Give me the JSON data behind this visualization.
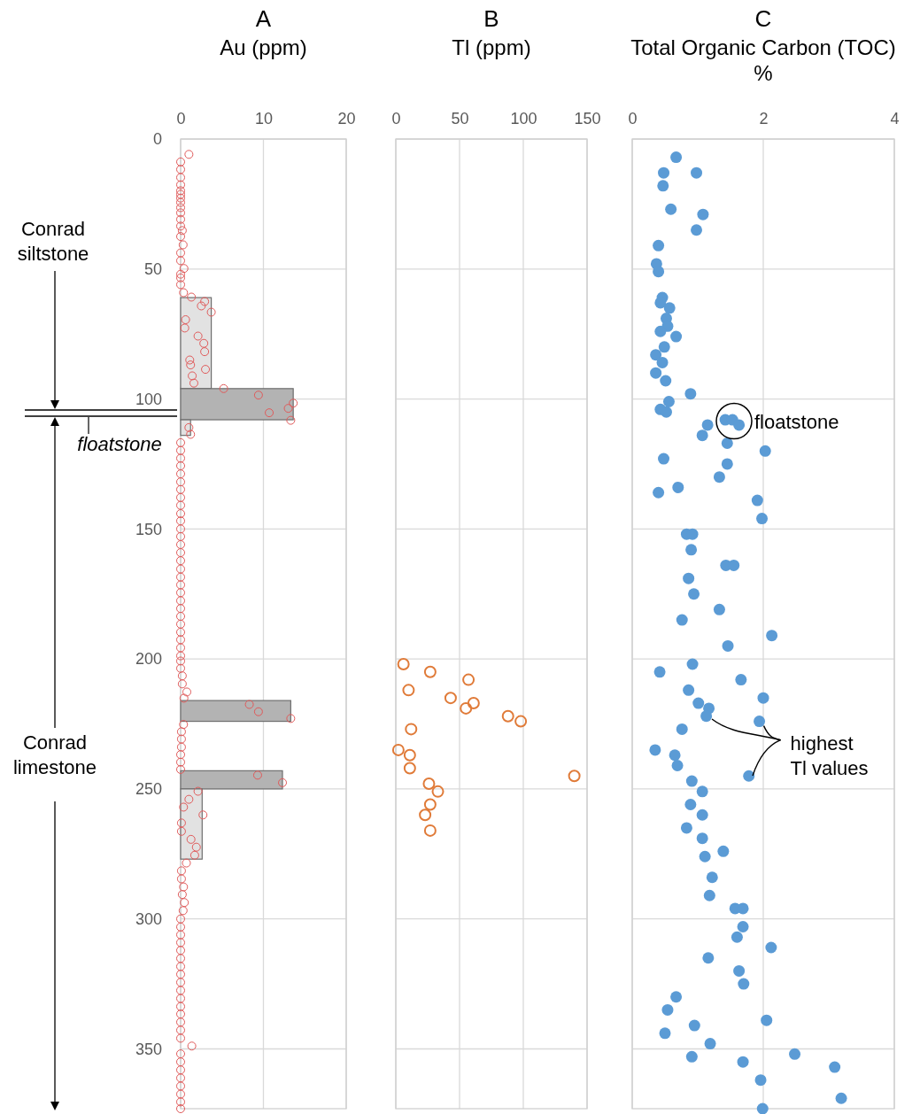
{
  "chart_data": [
    {
      "type": "histogram",
      "orientation": "horizontal",
      "title": "A",
      "xlabel": "Au (ppm)",
      "xlim": [
        0,
        20
      ],
      "xticks": [
        0,
        10,
        20
      ],
      "ylim": [
        373,
        0
      ],
      "yticks": [
        0,
        50,
        100,
        150,
        200,
        250,
        300,
        350
      ],
      "grid": true,
      "marker": "circle",
      "annotations": [
        "Conrad\nsiltstone",
        "floatstone",
        "Conrad\nlimestone"
      ],
      "series": [
        {
          "bins": [
            61,
            96,
            108,
            114,
            216,
            224,
            243,
            250,
            277
          ],
          "values": [
            3.7,
            13.6,
            1.2,
            0,
            13.3,
            0,
            12.3,
            2.6
          ],
          "colors": [
            "#e2e2e2",
            "#b3b3b3",
            "#e2e2e2",
            "#e2e2e2",
            "#b3b3b3",
            "#e2e2e2",
            "#b3b3b3",
            "#e2e2e2"
          ]
        },
        {
          "type": "scatter",
          "color": "#e05a5a",
          "values": [
            1.0,
            0,
            0,
            0,
            0,
            0,
            0,
            0,
            0,
            0,
            0,
            0,
            0,
            0.2,
            0,
            0.3,
            0,
            0,
            0.4,
            0,
            0,
            0,
            0.35,
            1.3,
            2.9,
            2.5,
            3.7,
            0.6,
            0.5,
            2.1,
            2.8,
            2.9,
            1.1,
            1.2,
            3.0,
            1.4,
            1.6,
            5.2,
            9.4,
            13.6,
            13.0,
            10.7,
            13.3,
            1.0,
            1.2,
            0,
            0,
            0,
            0,
            0,
            0,
            0,
            0,
            0,
            0,
            0,
            0,
            0,
            0,
            0,
            0,
            0,
            0,
            0,
            0,
            0,
            0,
            0,
            0,
            0,
            0,
            0,
            0,
            0,
            0,
            0.2,
            0.2,
            0.75,
            0.4,
            8.3,
            9.4,
            13.3,
            0.35,
            0.1,
            0.1,
            0.1,
            0,
            0,
            0,
            9.3,
            12.3,
            2.1,
            1.0,
            0.35,
            2.7,
            0.1,
            0.1,
            1.25,
            1.9,
            1.7,
            0.7,
            0.1,
            0.1,
            0.35,
            0.2,
            0.45,
            0.3,
            0,
            0,
            0,
            0,
            0,
            0,
            0,
            0,
            0,
            0,
            0,
            0,
            0,
            0,
            0,
            0,
            1.35,
            0,
            0,
            0,
            0,
            0,
            0,
            0,
            0
          ],
          "x": [
            5.9,
            8.8,
            11.7,
            14.8,
            17.6,
            19.9,
            21.3,
            22.7,
            24.4,
            26.4,
            28.4,
            30.9,
            33.5,
            35.2,
            37.5,
            40.7,
            43.8,
            46.8,
            49.8,
            52.0,
            53.4,
            56.0,
            59.1,
            60.8,
            62.5,
            64.2,
            66.6,
            69.5,
            72.7,
            75.8,
            78.6,
            81.8,
            85.0,
            86.9,
            88.6,
            91.1,
            93.9,
            96.0,
            98.5,
            101.6,
            103.6,
            105.3,
            108.2,
            111.0,
            113.6,
            116.8,
            119.8,
            122.8,
            125.7,
            128.8,
            131.9,
            134.8,
            137.9,
            140.9,
            144.1,
            146.9,
            150,
            152.9,
            156,
            159.1,
            162.2,
            165.4,
            168.5,
            171.5,
            174.5,
            177.6,
            180.6,
            183.6,
            186.6,
            189.7,
            192.6,
            195.7,
            198.8,
            200.8,
            203.6,
            206.5,
            209.6,
            212.7,
            215.1,
            217.5,
            220.3,
            222.9,
            225.2,
            228,
            230.8,
            233.9,
            236.8,
            239.7,
            242.5,
            244.7,
            247.6,
            250.9,
            254,
            257,
            260,
            263.1,
            266.3,
            269.4,
            272.4,
            275.5,
            278.5,
            281.5,
            284.6,
            287.7,
            290.6,
            293.7,
            296.8,
            300,
            303.1,
            306.1,
            309.1,
            312.1,
            315.2,
            318.3,
            321.3,
            324.4,
            327.5,
            330.6,
            333.7,
            336.6,
            339.7,
            342.8,
            345.9,
            348.9,
            351.9,
            355,
            358.1,
            361.2,
            364.3,
            367.4,
            370.4,
            373
          ]
        }
      ]
    },
    {
      "type": "scatter",
      "title": "B",
      "xlabel": "Tl (ppm)",
      "xlim": [
        0,
        150
      ],
      "xticks": [
        0,
        50,
        100,
        150
      ],
      "ylim": [
        373,
        0
      ],
      "yticks": [
        0,
        50,
        100,
        150,
        200,
        250,
        300,
        350
      ],
      "grid": true,
      "marker": "circle",
      "tick_labels": "x",
      "series": [
        {
          "color": "#e07b39",
          "x": [
            6,
            27,
            57,
            10,
            43,
            61,
            55,
            88,
            98,
            12,
            2,
            11,
            11,
            140,
            26,
            33,
            27,
            23,
            27
          ],
          "values": [
            202,
            205,
            208,
            212,
            215,
            217,
            219,
            222,
            224,
            227,
            235,
            237,
            242,
            245,
            248,
            251,
            256,
            260,
            266
          ]
        }
      ]
    },
    {
      "type": "scatter",
      "title": "C",
      "xlabel": "Total Organic Carbon (TOC)\n%",
      "xlim": [
        0,
        4
      ],
      "xticks": [
        0,
        2,
        4
      ],
      "ylim": [
        373,
        0
      ],
      "yticks": [
        0,
        50,
        100,
        150,
        200,
        250,
        300,
        350
      ],
      "grid": true,
      "marker": "circle",
      "tick_labels": "x",
      "annotations": [
        {
          "text": "floatstone",
          "x": 1.5,
          "y": 108.5
        },
        {
          "text": "highest\nTl values",
          "x": 1.94,
          "y": 224
        }
      ],
      "series": [
        {
          "color": "#5b9bd5",
          "x": [
            0.67,
            0.48,
            0.98,
            0.47,
            0.59,
            1.08,
            0.98,
            0.4,
            0.37,
            0.4,
            0.46,
            0.43,
            0.57,
            0.52,
            0.54,
            0.43,
            0.67,
            0.49,
            0.36,
            0.46,
            0.36,
            0.51,
            0.89,
            0.56,
            0.43,
            0.52,
            1.15,
            1.42,
            1.53,
            1.63,
            1.07,
            1.45,
            2.03,
            0.48,
            1.45,
            1.33,
            0.7,
            0.4,
            1.91,
            1.98,
            0.83,
            0.92,
            0.9,
            1.43,
            1.55,
            0.86,
            0.94,
            1.33,
            0.76,
            2.13,
            1.46,
            0.92,
            0.42,
            1.66,
            0.86,
            2.0,
            1.01,
            1.17,
            1.13,
            1.94,
            0.76,
            0.35,
            0.65,
            0.69,
            1.78,
            0.91,
            1.07,
            0.89,
            1.07,
            0.83,
            1.07,
            1.11,
            1.39,
            1.22,
            1.18,
            1.57,
            1.69,
            1.69,
            1.6,
            2.12,
            1.16,
            1.63,
            1.7,
            0.67,
            0.54,
            2.05,
            0.95,
            0.5,
            1.19,
            0.91,
            1.69,
            2.48,
            3.09,
            1.96,
            3.19,
            1.99
          ],
          "values": [
            7,
            13,
            13,
            18,
            27,
            29,
            35,
            41,
            48,
            51,
            61,
            63,
            65,
            69,
            72,
            74,
            76,
            80,
            83,
            86,
            90,
            93,
            98,
            101,
            104,
            105,
            110,
            108,
            108,
            110,
            114,
            117,
            120,
            123,
            125,
            130,
            134,
            136,
            139,
            146,
            152,
            152,
            158,
            164,
            164,
            169,
            175,
            181,
            185,
            191,
            195,
            202,
            205,
            208,
            212,
            215,
            217,
            219,
            222,
            224,
            227,
            235,
            237,
            241,
            245,
            247,
            251,
            256,
            260,
            265,
            269,
            276,
            274,
            284,
            291,
            296,
            296,
            303,
            307,
            311,
            315,
            320,
            325,
            330,
            335,
            339,
            341,
            344,
            348,
            353,
            355,
            352,
            357,
            362,
            369,
            373
          ]
        }
      ]
    }
  ]
}
